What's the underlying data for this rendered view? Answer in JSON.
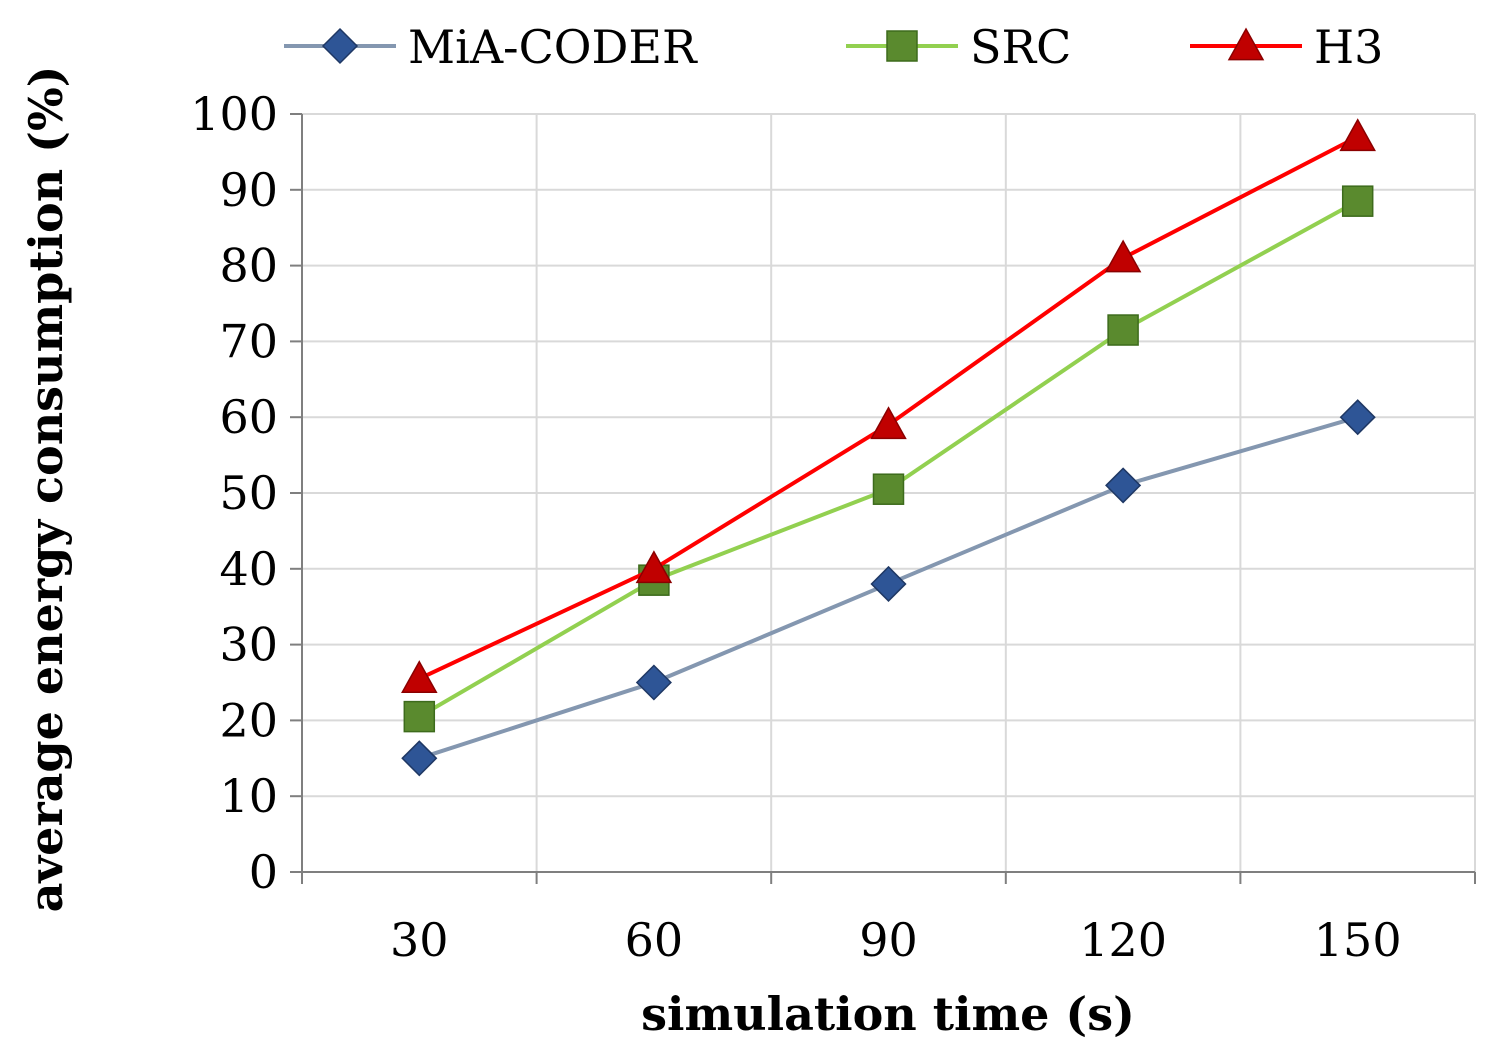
{
  "chart_data": {
    "type": "line",
    "title": "",
    "xlabel": "simulation time (s)",
    "ylabel": "average energy consumption (%)",
    "categories": [
      "30",
      "60",
      "90",
      "120",
      "150"
    ],
    "ylim": [
      0,
      100
    ],
    "yticks": [
      "0",
      "10",
      "20",
      "30",
      "40",
      "50",
      "60",
      "70",
      "80",
      "90",
      "100"
    ],
    "grid": true,
    "legend_position": "top",
    "series": [
      {
        "name": "MiA-CODER",
        "values": [
          15,
          25,
          38,
          51,
          60
        ],
        "color": "#8497b0",
        "marker": "diamond",
        "marker_color": "#2e5596"
      },
      {
        "name": "SRC",
        "values": [
          20.5,
          38.5,
          50.5,
          71.5,
          88.5
        ],
        "color": "#92d050",
        "marker": "square",
        "marker_color": "#5a8a2e"
      },
      {
        "name": "H3",
        "values": [
          25.5,
          40,
          59,
          81,
          97
        ],
        "color": "#ff0000",
        "marker": "triangle",
        "marker_color": "#c00000"
      }
    ]
  }
}
